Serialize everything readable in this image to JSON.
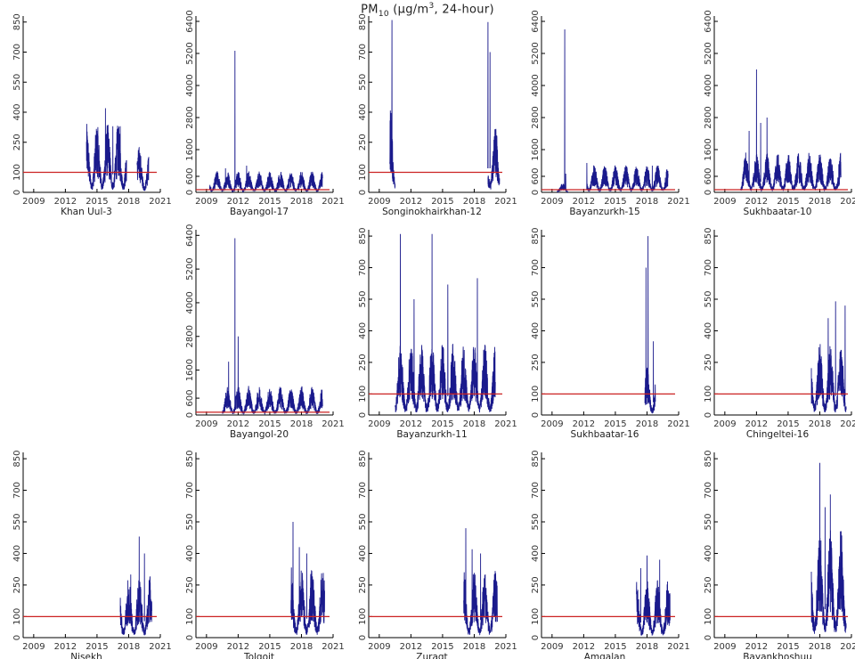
{
  "title": {
    "main": "PM",
    "sub": "10",
    "unit_prefix": " (μg/m",
    "unit_sup": "3",
    "unit_suffix": ", 24-hour)"
  },
  "chart_data": {
    "type": "line",
    "x_ticks": [
      "2009",
      "2012",
      "2015",
      "2018",
      "2021"
    ],
    "xlim": [
      2008,
      2021
    ],
    "threshold": 100,
    "colors": {
      "series": "#1a1a8c",
      "threshold": "#cc2222"
    },
    "panels": [
      {
        "name": "Khan Uul-3",
        "yticks": [
          0,
          100,
          250,
          400,
          550,
          700,
          850
        ],
        "ylim": [
          0,
          880
        ],
        "bursts": [
          [
            2014.0,
            2017.8,
            300
          ],
          [
            2018.8,
            2019.9,
            200
          ]
        ],
        "peaks": [
          [
            2015.8,
            420
          ],
          [
            2016.5,
            330
          ],
          [
            2017.2,
            330
          ]
        ]
      },
      {
        "name": "Bayangol-17",
        "yticks": [
          0,
          600,
          1600,
          2800,
          4000,
          5200,
          6400
        ],
        "ylim": [
          0,
          6600
        ],
        "bursts": [
          [
            2009.3,
            2020.0,
            700
          ]
        ],
        "peaks": [
          [
            2011.7,
            5300
          ],
          [
            2012.8,
            1000
          ],
          [
            2010.8,
            900
          ]
        ]
      },
      {
        "name": "Songinokhairkhan-12",
        "yticks": [
          0,
          100,
          250,
          400,
          550,
          700,
          850
        ],
        "ylim": [
          0,
          880
        ],
        "bursts": [
          [
            2010.0,
            2010.5,
            400
          ],
          [
            2019.3,
            2020.4,
            300
          ]
        ],
        "peaks": [
          [
            2010.2,
            860
          ],
          [
            2019.3,
            850
          ],
          [
            2019.5,
            700
          ]
        ]
      },
      {
        "name": "Bayanzurkh-15",
        "yticks": [
          0,
          600,
          1600,
          2800,
          4000,
          5200,
          6400
        ],
        "ylim": [
          0,
          6600
        ],
        "bursts": [
          [
            2009.5,
            2010.5,
            300
          ],
          [
            2012.3,
            2020.0,
            900
          ]
        ],
        "peaks": [
          [
            2010.2,
            6100
          ],
          [
            2010.3,
            700
          ],
          [
            2012.3,
            1100
          ],
          [
            2018.5,
            1000
          ]
        ]
      },
      {
        "name": "Sukhbaatar-10",
        "yticks": [
          0,
          600,
          1600,
          2800,
          4000,
          5200,
          6400
        ],
        "ylim": [
          0,
          6600
        ],
        "bursts": [
          [
            2010.5,
            2020.0,
            1300
          ]
        ],
        "peaks": [
          [
            2012.0,
            4600
          ],
          [
            2012.4,
            2600
          ],
          [
            2013.0,
            2800
          ],
          [
            2011.3,
            2300
          ]
        ]
      },
      {
        "name": "",
        "empty": true
      },
      {
        "name": "Bayangol-20",
        "yticks": [
          0,
          600,
          1600,
          2800,
          4000,
          5200,
          6400
        ],
        "ylim": [
          0,
          6600
        ],
        "bursts": [
          [
            2010.5,
            2020.0,
            900
          ]
        ],
        "peaks": [
          [
            2011.7,
            6300
          ],
          [
            2012.0,
            2800
          ],
          [
            2011.1,
            1900
          ]
        ]
      },
      {
        "name": "Bayanzurkh-11",
        "yticks": [
          0,
          100,
          250,
          400,
          550,
          700,
          850
        ],
        "ylim": [
          0,
          880
        ],
        "bursts": [
          [
            2010.5,
            2020.0,
            300
          ]
        ],
        "peaks": [
          [
            2011.0,
            860
          ],
          [
            2014.0,
            860
          ],
          [
            2012.3,
            550
          ],
          [
            2015.5,
            620
          ],
          [
            2018.3,
            650
          ]
        ]
      },
      {
        "name": "Sukhbaatar-16",
        "yticks": [
          0,
          100,
          250,
          400,
          550,
          700,
          850
        ],
        "ylim": [
          0,
          880
        ],
        "bursts": [
          [
            2017.8,
            2018.8,
            200
          ]
        ],
        "peaks": [
          [
            2018.1,
            850
          ],
          [
            2017.9,
            700
          ],
          [
            2018.6,
            350
          ]
        ]
      },
      {
        "name": "Chingeltei-16",
        "yticks": [
          0,
          100,
          250,
          400,
          550,
          700,
          850
        ],
        "ylim": [
          0,
          880
        ],
        "bursts": [
          [
            2017.2,
            2020.5,
            300
          ]
        ],
        "peaks": [
          [
            2019.5,
            540
          ],
          [
            2020.4,
            520
          ],
          [
            2018.8,
            460
          ]
        ]
      },
      {
        "name": "Nisekh",
        "yticks": [
          0,
          100,
          250,
          400,
          550,
          700,
          850
        ],
        "ylim": [
          0,
          880
        ],
        "bursts": [
          [
            2017.2,
            2020.2,
            260
          ]
        ],
        "peaks": [
          [
            2019.0,
            480
          ],
          [
            2019.5,
            400
          ],
          [
            2018.2,
            300
          ]
        ]
      },
      {
        "name": "Tolgoit",
        "yticks": [
          0,
          100,
          250,
          400,
          550,
          700,
          850
        ],
        "ylim": [
          0,
          880
        ],
        "bursts": [
          [
            2017.0,
            2020.2,
            300
          ]
        ],
        "peaks": [
          [
            2017.2,
            550
          ],
          [
            2017.8,
            430
          ],
          [
            2018.5,
            400
          ]
        ]
      },
      {
        "name": "Zuragt",
        "yticks": [
          0,
          100,
          250,
          400,
          550,
          700,
          850
        ],
        "ylim": [
          0,
          880
        ],
        "bursts": [
          [
            2017.0,
            2020.2,
            280
          ]
        ],
        "peaks": [
          [
            2017.2,
            520
          ],
          [
            2017.8,
            420
          ],
          [
            2018.6,
            400
          ]
        ]
      },
      {
        "name": "Amgalan",
        "yticks": [
          0,
          100,
          250,
          400,
          550,
          700,
          850
        ],
        "ylim": [
          0,
          880
        ],
        "bursts": [
          [
            2017.0,
            2020.2,
            240
          ]
        ],
        "peaks": [
          [
            2018.0,
            390
          ],
          [
            2019.2,
            370
          ],
          [
            2017.4,
            330
          ]
        ]
      },
      {
        "name": "Bayankhoshuu",
        "yticks": [
          0,
          100,
          250,
          400,
          550,
          700,
          850
        ],
        "ylim": [
          0,
          880
        ],
        "bursts": [
          [
            2017.2,
            2020.5,
            450
          ]
        ],
        "peaks": [
          [
            2018.0,
            830
          ],
          [
            2019.0,
            680
          ],
          [
            2018.5,
            620
          ]
        ]
      }
    ]
  }
}
